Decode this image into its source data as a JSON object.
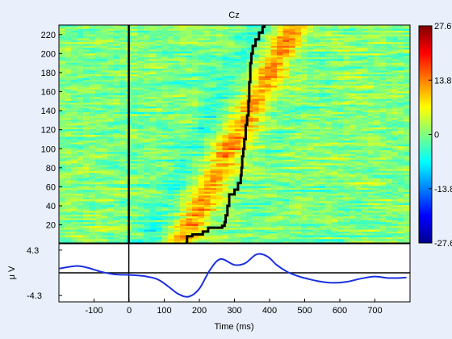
{
  "chart_data": [
    {
      "type": "heatmap",
      "title": "Cz",
      "xlabel": "",
      "ylabel": "",
      "xlim": [
        -200,
        800
      ],
      "ylim": [
        1,
        230
      ],
      "yticks": [
        20,
        40,
        60,
        80,
        100,
        120,
        140,
        160,
        180,
        200,
        220
      ],
      "vline_x": 0,
      "colormap": "jet",
      "colorbar": {
        "ticks": [
          27.6,
          13.8,
          0,
          -13.8,
          -27.6
        ],
        "tick_labels": [
          "27.6",
          "13.8",
          "0",
          "-13.8",
          "-27.6"
        ],
        "range": [
          -27.6,
          27.6
        ]
      },
      "sorting_line": {
        "color": "#000000",
        "points": [
          [
            160,
            1
          ],
          [
            165,
            8
          ],
          [
            180,
            10
          ],
          [
            210,
            13
          ],
          [
            225,
            17
          ],
          [
            265,
            19
          ],
          [
            272,
            23
          ],
          [
            275,
            30
          ],
          [
            280,
            40
          ],
          [
            285,
            52
          ],
          [
            300,
            57
          ],
          [
            310,
            64
          ],
          [
            318,
            72
          ],
          [
            320,
            80
          ],
          [
            322,
            92
          ],
          [
            325,
            100
          ],
          [
            328,
            110
          ],
          [
            332,
            125
          ],
          [
            336,
            135
          ],
          [
            340,
            150
          ],
          [
            342,
            170
          ],
          [
            345,
            190
          ],
          [
            348,
            200
          ],
          [
            352,
            208
          ],
          [
            360,
            215
          ],
          [
            370,
            222
          ],
          [
            380,
            228
          ],
          [
            385,
            232
          ]
        ]
      },
      "band": {
        "center_start": 150,
        "center_end": 470,
        "width": 45
      }
    },
    {
      "type": "line",
      "title": "",
      "xlabel": "Time (ms)",
      "ylabel": "μ V",
      "xlim": [
        -200,
        800
      ],
      "ylim": [
        -5.5,
        5.5
      ],
      "xticks": [
        -100,
        0,
        100,
        200,
        300,
        400,
        500,
        600,
        700
      ],
      "ytick_labels": [
        {
          "value": 4.3,
          "label": "4.3"
        },
        {
          "value": -4.3,
          "label": "-4.3"
        }
      ],
      "hline_y": 0,
      "vline_x": 0,
      "series": [
        {
          "color": "#1a2fe0",
          "x": [
            -200,
            -150,
            -120,
            -80,
            -40,
            0,
            40,
            80,
            110,
            140,
            170,
            200,
            230,
            260,
            300,
            330,
            360,
            380,
            400,
            420,
            450,
            480,
            500,
            540,
            580,
            620,
            660,
            700,
            740,
            790
          ],
          "y": [
            0.8,
            1.3,
            1.0,
            0.2,
            -0.3,
            -0.4,
            -0.6,
            -1.2,
            -2.5,
            -4.0,
            -4.5,
            -3.0,
            0.5,
            2.6,
            1.5,
            1.8,
            3.4,
            3.5,
            2.8,
            1.5,
            0.2,
            -0.6,
            -1.0,
            -1.6,
            -1.9,
            -1.7,
            -1.1,
            -0.7,
            -1.0,
            -0.9
          ]
        }
      ]
    }
  ]
}
